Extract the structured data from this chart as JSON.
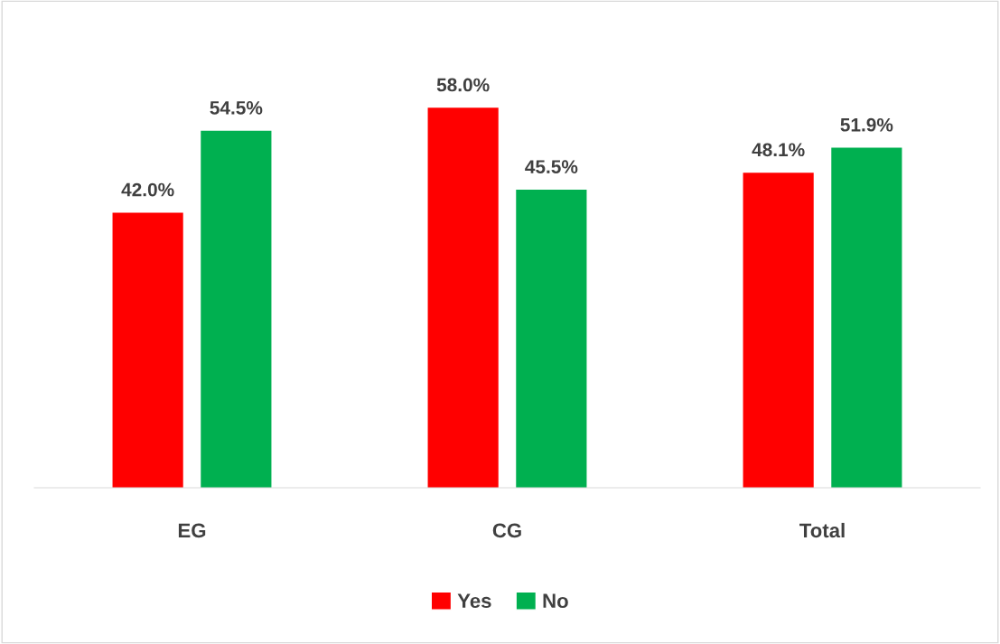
{
  "chart_data": {
    "type": "bar",
    "categories": [
      "EG",
      "CG",
      "Total"
    ],
    "series": [
      {
        "name": "Yes",
        "color": "#ff0000",
        "values": [
          42.0,
          58.0,
          48.1
        ],
        "value_labels": [
          "42.0%",
          "58.0%",
          "48.1%"
        ]
      },
      {
        "name": "No",
        "color": "#00b050",
        "values": [
          54.5,
          45.5,
          51.9
        ],
        "value_labels": [
          "54.5%",
          "45.5%",
          "51.9%"
        ]
      }
    ],
    "legend": "bottom",
    "grid": false
  }
}
